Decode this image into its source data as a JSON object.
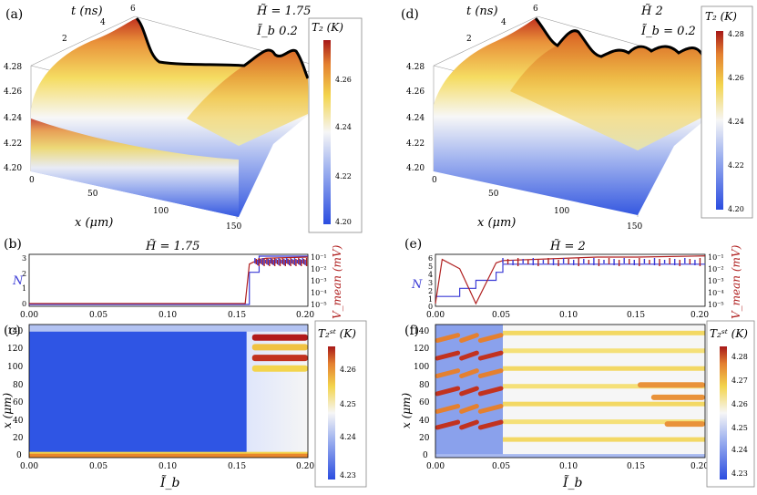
{
  "figure": {
    "panel_labels": [
      "(a)",
      "(b)",
      "(c)",
      "(d)",
      "(e)",
      "(f)"
    ],
    "colors": {
      "blue_axis": "#3b3bd6",
      "red_axis": "#b02020",
      "cold": "#2b4de0",
      "hot": "#b21a1a",
      "mid": "#f6f6f6",
      "warm": "#f2d24a",
      "orange": "#e6862c",
      "frame": "#888888"
    }
  },
  "chart_data": [
    {
      "id": "a",
      "type": "surface3d",
      "title_lines": [
        "H̃ = 1.75",
        "Ĩ_b  0.2"
      ],
      "axes": {
        "t_label": "t  (ns)",
        "x_label": "x  (μm)",
        "t_ticks": [
          "2",
          "4",
          "6"
        ],
        "x_ticks": [
          "0",
          "50",
          "100",
          "150"
        ],
        "z_ticks": [
          "4.20",
          "4.22",
          "4.24",
          "4.26",
          "4.28"
        ]
      },
      "colorbar": {
        "label": "T₂ (K)",
        "ticks": [
          "4.26",
          "4.24",
          "4.22",
          "4.20"
        ]
      }
    },
    {
      "id": "b",
      "type": "line",
      "title": "H̃ = 1.75",
      "ylabel_left": "N",
      "ylabel_right": "V_mean (mV)",
      "yticks_left": [
        "3",
        "2",
        "1",
        "0"
      ],
      "yticks_right": [
        "10⁻¹",
        "10⁻²",
        "10⁻³",
        "10⁻⁴",
        "10⁻⁵"
      ],
      "x": [
        0.0,
        0.155,
        0.158,
        0.165,
        0.17,
        0.2
      ],
      "series": [
        {
          "name": "N",
          "axis": "left",
          "values": [
            0,
            0,
            2,
            3,
            3,
            3
          ]
        },
        {
          "name": "V_mean",
          "axis": "right_log10",
          "values": [
            -5,
            -5,
            -1.6,
            -1.2,
            -1.1,
            -1.0
          ]
        }
      ]
    },
    {
      "id": "c",
      "type": "heatmap",
      "xlabel": "Ĩ_b",
      "ylabel": "x (μm)",
      "xticks": [
        "0.00",
        "0.05",
        "0.10",
        "0.15",
        "0.20"
      ],
      "yticks": [
        "0",
        "20",
        "40",
        "60",
        "80",
        "100",
        "120",
        "140"
      ],
      "xlim": [
        0,
        0.2
      ],
      "ylim": [
        0,
        150
      ],
      "colorbar": {
        "label": "T₂ˢᵗ (K)",
        "ticks": [
          "4.26",
          "4.25",
          "4.24",
          "4.23"
        ]
      }
    },
    {
      "id": "d",
      "type": "surface3d",
      "title_lines": [
        "H̃    2",
        "Ĩ_b = 0.2"
      ],
      "axes": {
        "t_label": "t  (ns)",
        "x_label": "x  (μm)",
        "t_ticks": [
          "2",
          "4",
          "6"
        ],
        "x_ticks": [
          "0",
          "50",
          "100",
          "150"
        ],
        "z_ticks": [
          "4.20",
          "4.22",
          "4.24",
          "4.26",
          "4.28"
        ]
      },
      "colorbar": {
        "label": "T₂ (K)",
        "ticks": [
          "4.28",
          "4.26",
          "4.24",
          "4.22",
          "4.20"
        ]
      }
    },
    {
      "id": "e",
      "type": "line",
      "title": "H̃ = 2",
      "ylabel_left": "N",
      "ylabel_right": "V_mean (mV)",
      "yticks_left": [
        "6",
        "5",
        "4",
        "3",
        "2",
        "1",
        "0"
      ],
      "yticks_right": [
        "10⁻¹",
        "10⁻²",
        "10⁻³",
        "10⁻⁴",
        "10⁻⁵"
      ],
      "xticks": [
        "0.00",
        "0.05",
        "0.10",
        "0.15",
        "0.20"
      ],
      "x": [
        0.0,
        0.005,
        0.018,
        0.03,
        0.045,
        0.05,
        0.12,
        0.15,
        0.2
      ],
      "series": [
        {
          "name": "N",
          "axis": "left",
          "values": [
            1,
            1,
            2,
            3,
            4,
            5,
            5,
            5,
            5
          ]
        },
        {
          "name": "V_mean",
          "axis": "right_log10",
          "values": [
            -5,
            -1.2,
            -2,
            -5,
            -1.5,
            -1.3,
            -1.0,
            -1.0,
            -0.9
          ]
        }
      ]
    },
    {
      "id": "f",
      "type": "heatmap",
      "xlabel": "Ĩ_b",
      "ylabel": "x (μm)",
      "xticks": [
        "0.00",
        "0.05",
        "0.10",
        "0.15",
        "0.20"
      ],
      "yticks": [
        "0",
        "20",
        "40",
        "60",
        "80",
        "100",
        "120",
        "140"
      ],
      "xlim": [
        0,
        0.2
      ],
      "ylim": [
        0,
        150
      ],
      "colorbar": {
        "label": "T₂ˢᵗ (K)",
        "ticks": [
          "4.28",
          "4.27",
          "4.26",
          "4.25",
          "4.24",
          "4.23"
        ]
      }
    }
  ]
}
